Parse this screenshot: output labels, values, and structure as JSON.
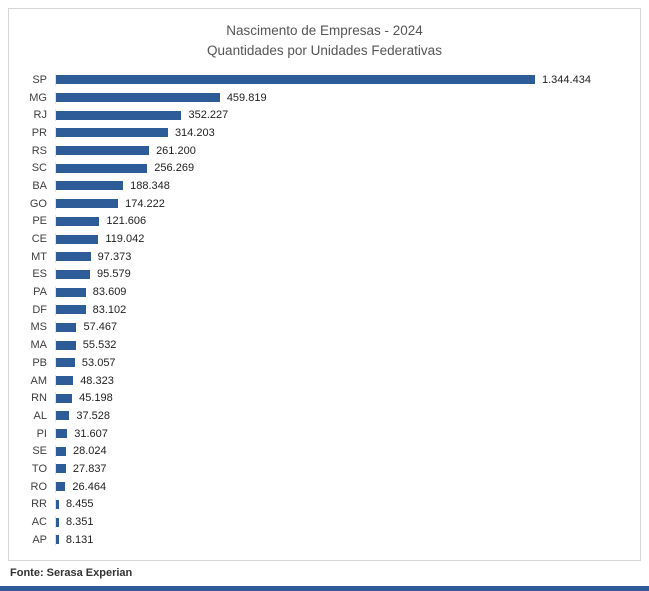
{
  "header": {
    "title_line1": "Nascimento de Empresas - 2024",
    "title_line2": "Quantidades por Unidades Federativas"
  },
  "footer": {
    "source": "Fonte: Serasa Experian"
  },
  "colors": {
    "bar": "#2e5c98",
    "accent_strip": "#2e5c98"
  },
  "chart_data": {
    "type": "bar",
    "orientation": "horizontal",
    "title": "Nascimento de Empresas - 2024",
    "subtitle": "Quantidades por Unidades Federativas",
    "categories": [
      "SP",
      "MG",
      "RJ",
      "PR",
      "RS",
      "SC",
      "BA",
      "GO",
      "PE",
      "CE",
      "MT",
      "ES",
      "PA",
      "DF",
      "MS",
      "MA",
      "PB",
      "AM",
      "RN",
      "AL",
      "PI",
      "SE",
      "TO",
      "RO",
      "RR",
      "AC",
      "AP"
    ],
    "values": [
      1344434,
      459819,
      352227,
      314203,
      261200,
      256269,
      188348,
      174222,
      121606,
      119042,
      97373,
      95579,
      83609,
      83102,
      57467,
      55532,
      53057,
      48323,
      45198,
      37528,
      31607,
      28024,
      27837,
      26464,
      8455,
      8351,
      8131
    ],
    "value_labels": [
      "1.344.434",
      "459.819",
      "352.227",
      "314.203",
      "261.200",
      "256.269",
      "188.348",
      "174.222",
      "121.606",
      "119.042",
      "97.373",
      "95.579",
      "83.609",
      "83.102",
      "57.467",
      "55.532",
      "53.057",
      "48.323",
      "45.198",
      "37.528",
      "31.607",
      "28.024",
      "27.837",
      "26.464",
      "8.455",
      "8.351",
      "8.131"
    ],
    "xlim": [
      0,
      1344434
    ],
    "grid": false,
    "legend": "none",
    "source": "Fonte: Serasa Experian"
  }
}
